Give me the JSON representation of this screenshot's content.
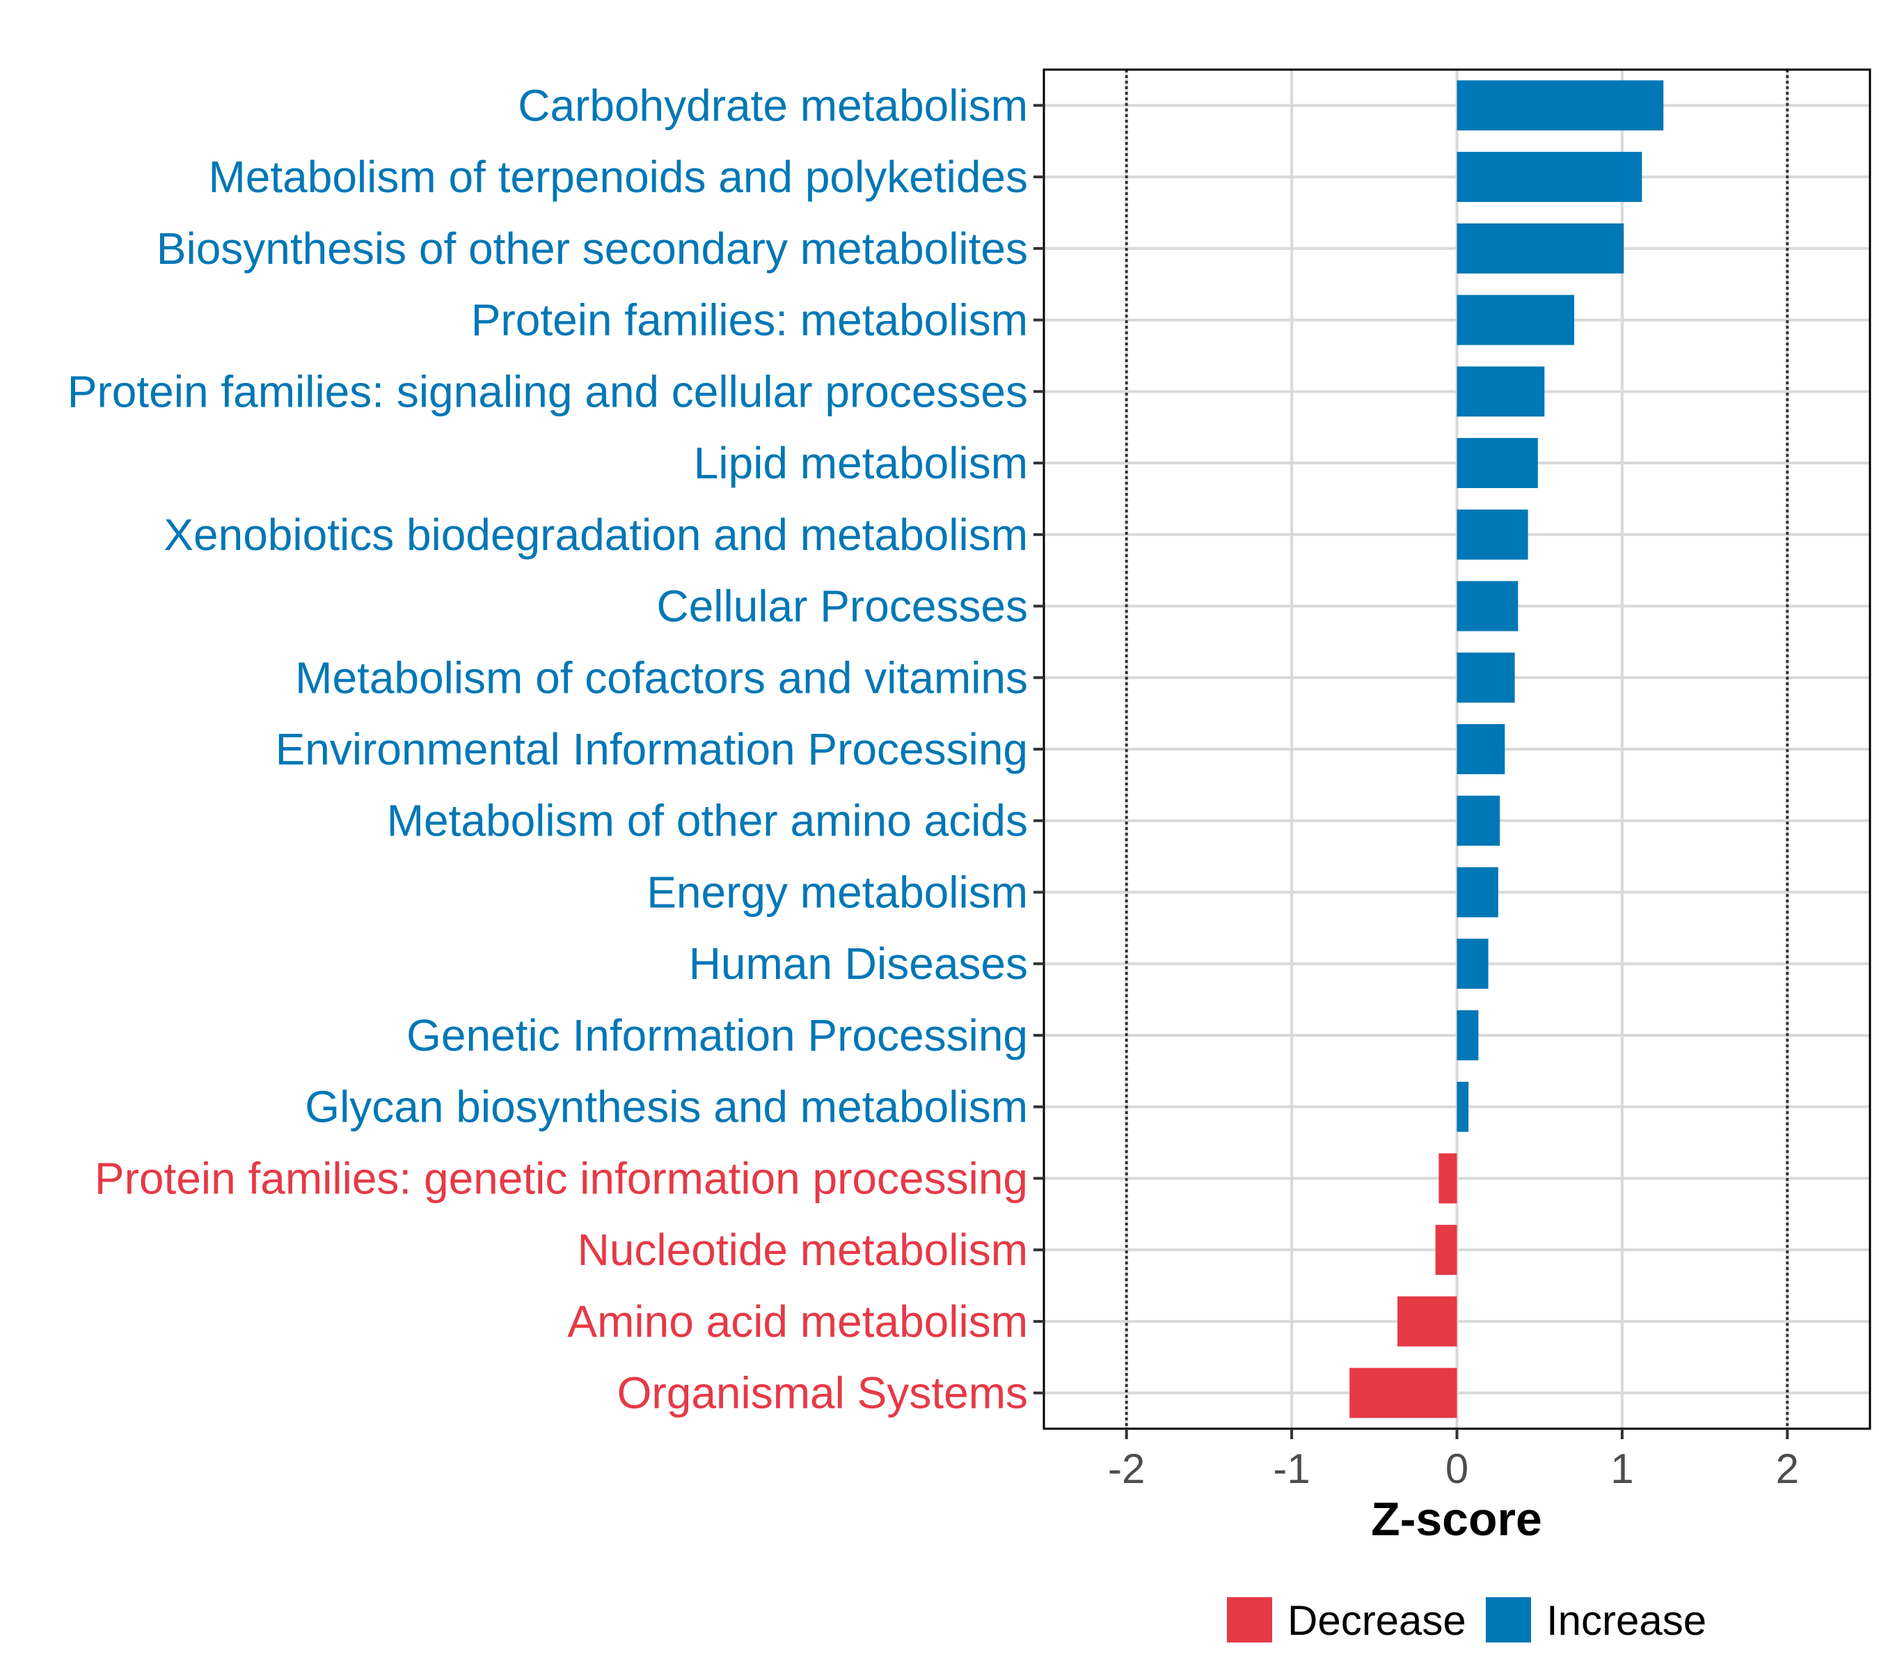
{
  "colors": {
    "increase": "#0077b6",
    "decrease": "#e63946",
    "grid": "#d9d9d9",
    "panel_border": "#000000",
    "ref_line": "#333333"
  },
  "chart_data": {
    "type": "bar",
    "orientation": "horizontal",
    "title": "",
    "xlabel": "Z-score",
    "ylabel": "",
    "xlim": [
      -2.5,
      2.5
    ],
    "x_ticks": [
      -2,
      -1,
      0,
      1,
      2
    ],
    "x_tick_labels": [
      "-2",
      "-1",
      "0",
      "1",
      "2"
    ],
    "reference_lines": [
      -2,
      2
    ],
    "grid": true,
    "legend_position": "bottom",
    "legend": [
      {
        "name": "Decrease",
        "color_key": "decrease"
      },
      {
        "name": "Increase",
        "color_key": "increase"
      }
    ],
    "categories": [
      "Carbohydrate metabolism",
      "Metabolism of terpenoids and polyketides",
      "Biosynthesis of other secondary metabolites",
      "Protein families: metabolism",
      "Protein families: signaling and cellular processes",
      "Lipid metabolism",
      "Xenobiotics biodegradation and metabolism",
      "Cellular Processes",
      "Metabolism of cofactors and vitamins",
      "Environmental Information Processing",
      "Metabolism of other amino acids",
      "Energy metabolism",
      "Human Diseases",
      "Genetic Information Processing",
      "Glycan biosynthesis and metabolism",
      "Protein families: genetic information processing",
      "Nucleotide metabolism",
      "Amino acid metabolism",
      "Organismal Systems"
    ],
    "values": [
      1.25,
      1.12,
      1.01,
      0.71,
      0.53,
      0.49,
      0.43,
      0.37,
      0.35,
      0.29,
      0.26,
      0.25,
      0.19,
      0.13,
      0.07,
      -0.11,
      -0.13,
      -0.36,
      -0.65
    ],
    "groups": [
      "Increase",
      "Increase",
      "Increase",
      "Increase",
      "Increase",
      "Increase",
      "Increase",
      "Increase",
      "Increase",
      "Increase",
      "Increase",
      "Increase",
      "Increase",
      "Increase",
      "Increase",
      "Decrease",
      "Decrease",
      "Decrease",
      "Decrease"
    ]
  }
}
